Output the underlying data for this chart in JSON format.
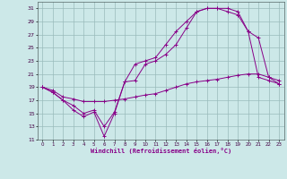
{
  "xlabel": "Windchill (Refroidissement éolien,°C)",
  "xlim": [
    -0.5,
    23.5
  ],
  "ylim": [
    11,
    32
  ],
  "yticks": [
    11,
    13,
    15,
    17,
    19,
    21,
    23,
    25,
    27,
    29,
    31
  ],
  "xticks": [
    0,
    1,
    2,
    3,
    4,
    5,
    6,
    7,
    8,
    9,
    10,
    11,
    12,
    13,
    14,
    15,
    16,
    17,
    18,
    19,
    20,
    21,
    22,
    23
  ],
  "bg_color": "#cce8e8",
  "line_color": "#880088",
  "grid_color": "#99bbbb",
  "line1_x": [
    0,
    1,
    2,
    3,
    4,
    5,
    6,
    7,
    8,
    9,
    10,
    11,
    12,
    13,
    14,
    15,
    16,
    17,
    18,
    19,
    20,
    21,
    22,
    23
  ],
  "line1_y": [
    19,
    18.2,
    17.0,
    15.5,
    14.5,
    15.2,
    11.5,
    15.0,
    19.8,
    20.0,
    22.5,
    23.0,
    24.0,
    25.5,
    28.0,
    30.5,
    31.0,
    31.0,
    31.0,
    30.5,
    27.5,
    20.5,
    20.0,
    19.5
  ],
  "line2_x": [
    0,
    1,
    2,
    3,
    4,
    5,
    6,
    7,
    8,
    9,
    10,
    11,
    12,
    13,
    14,
    15,
    16,
    17,
    18,
    19,
    20,
    21,
    22,
    23
  ],
  "line2_y": [
    19.0,
    18.5,
    17.5,
    17.2,
    16.8,
    16.8,
    16.8,
    17.0,
    17.2,
    17.5,
    17.8,
    18.0,
    18.5,
    19.0,
    19.5,
    19.8,
    20.0,
    20.2,
    20.5,
    20.8,
    21.0,
    21.0,
    20.5,
    19.5
  ],
  "line3_x": [
    0,
    1,
    2,
    3,
    4,
    5,
    6,
    7,
    8,
    9,
    10,
    11,
    12,
    13,
    14,
    15,
    16,
    17,
    18,
    19,
    20,
    21,
    22,
    23
  ],
  "line3_y": [
    19.0,
    18.2,
    17.0,
    16.2,
    15.0,
    15.5,
    13.0,
    15.2,
    19.8,
    22.5,
    23.0,
    23.5,
    25.5,
    27.5,
    29.0,
    30.5,
    31.0,
    31.0,
    30.5,
    30.0,
    27.5,
    26.5,
    20.5,
    20.0
  ]
}
